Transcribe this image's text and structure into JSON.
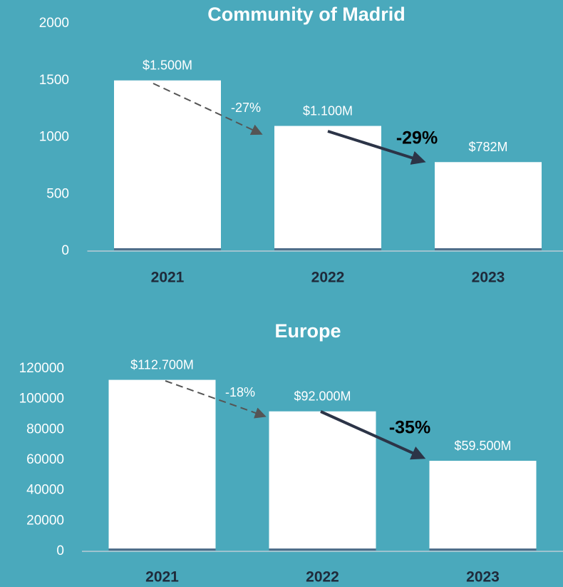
{
  "chart_data": [
    {
      "type": "bar",
      "title": "Community of Madrid",
      "categories": [
        "2021",
        "2022",
        "2023"
      ],
      "values": [
        1500,
        1100,
        782
      ],
      "value_labels": [
        "$1.500M",
        "$1.100M",
        "$782M"
      ],
      "color": "#ffffff",
      "ylim": [
        0,
        2000
      ],
      "yticks": [
        0,
        500,
        1000,
        1500,
        2000
      ],
      "annotations": [
        "-27%",
        "-29%"
      ]
    },
    {
      "type": "bar",
      "title": "Europe",
      "categories": [
        "2021",
        "2022",
        "2023"
      ],
      "values": [
        112700,
        92000,
        59500
      ],
      "value_labels": [
        "$112.700M",
        "$92.000M",
        "$59.500M"
      ],
      "color": "#ffffff",
      "ylim": [
        0,
        120000
      ],
      "yticks": [
        0,
        20000,
        40000,
        60000,
        80000,
        100000,
        120000
      ],
      "annotations": [
        "-18%",
        "-35%"
      ]
    }
  ]
}
